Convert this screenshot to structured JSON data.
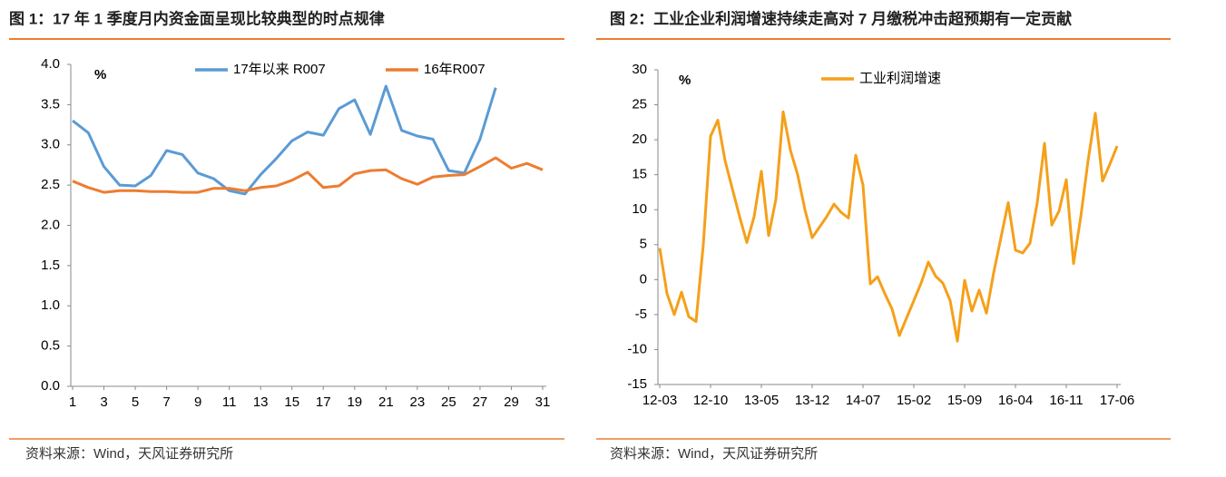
{
  "chart_data": [
    {
      "type": "line",
      "title": "图 1：17 年 1 季度月内资金面呈现比较典型的时点规律",
      "y_label": "%",
      "source": "资料来源：Wind，天风证券研究所",
      "categories": [
        "1",
        null,
        "3",
        null,
        "5",
        null,
        "7",
        null,
        "9",
        null,
        "11",
        null,
        "13",
        null,
        "15",
        null,
        "17",
        null,
        "19",
        null,
        "21",
        null,
        "23",
        null,
        "25",
        null,
        "27",
        null,
        "29",
        null,
        "31"
      ],
      "series": [
        {
          "name": "17年以来 R007",
          "color": "#5b9bd5",
          "values": [
            3.3,
            3.15,
            2.73,
            2.5,
            2.49,
            2.62,
            2.93,
            2.88,
            2.65,
            2.58,
            2.43,
            2.39,
            2.63,
            2.83,
            3.05,
            3.16,
            3.12,
            3.45,
            3.56,
            3.13,
            3.73,
            3.18,
            3.11,
            3.07,
            2.68,
            2.65,
            3.07,
            3.71,
            null,
            null,
            null
          ]
        },
        {
          "name": "16年R007",
          "color": "#ed7d31",
          "values": [
            2.55,
            2.47,
            2.41,
            2.43,
            2.43,
            2.42,
            2.42,
            2.41,
            2.41,
            2.46,
            2.46,
            2.43,
            2.47,
            2.49,
            2.56,
            2.66,
            2.47,
            2.49,
            2.64,
            2.68,
            2.69,
            2.58,
            2.51,
            2.6,
            2.62,
            2.63,
            2.73,
            2.84,
            2.71,
            2.77,
            2.69
          ]
        }
      ],
      "ylim": [
        0,
        4
      ],
      "yticks": [
        {
          "value": 0,
          "label": "0.0"
        },
        {
          "value": 0.5,
          "label": "0.5"
        },
        {
          "value": 1,
          "label": "1.0"
        },
        {
          "value": 1.5,
          "label": "1.5"
        },
        {
          "value": 2,
          "label": "2.0"
        },
        {
          "value": 2.5,
          "label": "2.5"
        },
        {
          "value": 3,
          "label": "3.0"
        },
        {
          "value": 3.5,
          "label": "3.5"
        },
        {
          "value": 4,
          "label": "4.0"
        }
      ],
      "legend": "top"
    },
    {
      "type": "line",
      "title": "图 2：工业企业利润增速持续走高对 7 月缴税冲击超预期有一定贡献",
      "y_label": "%",
      "source": "资料来源：Wind，天风证券研究所",
      "categories": [
        "12-03",
        null,
        null,
        null,
        null,
        null,
        null,
        "12-10",
        null,
        null,
        null,
        null,
        null,
        null,
        "13-05",
        null,
        null,
        null,
        null,
        null,
        null,
        "13-12",
        null,
        null,
        null,
        null,
        null,
        null,
        "14-07",
        null,
        null,
        null,
        null,
        null,
        null,
        "15-02",
        null,
        null,
        null,
        null,
        null,
        null,
        "15-09",
        null,
        null,
        null,
        null,
        null,
        null,
        "16-04",
        null,
        null,
        null,
        null,
        null,
        null,
        "16-11",
        null,
        null,
        null,
        null,
        null,
        null,
        "17-06"
      ],
      "series": [
        {
          "name": "工业利润增速",
          "color": "#f5a01a",
          "values": [
            4.5,
            -2,
            -5,
            -1.8,
            -5.3,
            -6,
            5,
            20.5,
            22.8,
            17,
            13,
            9,
            5.3,
            9,
            15.5,
            6.3,
            11.5,
            24,
            18.5,
            15,
            10,
            6,
            7.5,
            9,
            10.8,
            9.6,
            8.8,
            17.8,
            13.5,
            -0.6,
            0.4,
            -2,
            -4.2,
            -8,
            -5.5,
            -3,
            -0.5,
            2.5,
            0.5,
            -0.5,
            -3,
            -8.8,
            -0.1,
            -4.5,
            -1.5,
            -4.8,
            1,
            6,
            11,
            4.2,
            3.8,
            5.2,
            11,
            19.5,
            7.8,
            9.8,
            14.3,
            2.3,
            9,
            17,
            23.8,
            14.1,
            16.5,
            19.1
          ]
        }
      ],
      "ylim": [
        -15,
        30
      ],
      "yticks": [
        -15,
        -10,
        -5,
        0,
        5,
        10,
        15,
        20,
        25,
        30
      ],
      "legend": "top"
    }
  ]
}
